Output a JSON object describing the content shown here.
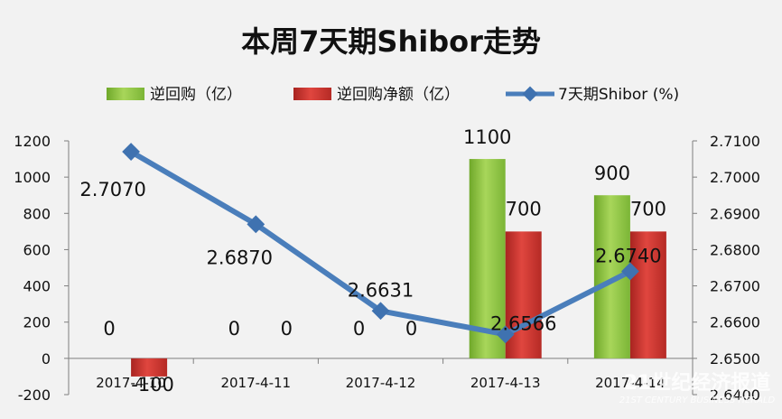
{
  "chart_data": {
    "type": "bar",
    "title": "本周7天期Shibor走势",
    "categories": [
      "2017-4-10",
      "2017-4-11",
      "2017-4-12",
      "2017-4-13",
      "2017-4-14"
    ],
    "series": [
      {
        "name": "逆回购（亿）",
        "kind": "bar",
        "axis": "left",
        "color": "#8cc63f",
        "values": [
          0,
          0,
          0,
          1100,
          900
        ],
        "labels": [
          "0",
          "0",
          "0",
          "1100",
          "900"
        ]
      },
      {
        "name": "逆回购净额（亿）",
        "kind": "bar",
        "axis": "left",
        "color": "#c9302c",
        "values": [
          -100,
          0,
          0,
          700,
          700
        ],
        "labels": [
          "-100",
          "0",
          "0",
          "700",
          "700"
        ]
      },
      {
        "name": "7天期Shibor (%)",
        "kind": "line",
        "axis": "right",
        "color": "#4a7ebb",
        "values": [
          2.707,
          2.687,
          2.6631,
          2.6566,
          2.674
        ],
        "labels": [
          "2.7070",
          "2.6870",
          "2.6631",
          "2.6566",
          "2.6740"
        ]
      }
    ],
    "y_left": {
      "min": -200,
      "max": 1200,
      "step": 200,
      "ticks": [
        "-200",
        "0",
        "200",
        "400",
        "600",
        "800",
        "1000",
        "1200"
      ]
    },
    "y_right": {
      "min": 2.64,
      "max": 2.71,
      "step": 0.01,
      "ticks": [
        "2.6400",
        "2.6500",
        "2.6600",
        "2.6700",
        "2.6800",
        "2.6900",
        "2.7000",
        "2.7100"
      ]
    },
    "grid": false,
    "legend_position": "top"
  },
  "watermark": {
    "main": "21世纪经济报道",
    "sub": "21ST CENTURY BUSINESS HERALD"
  }
}
